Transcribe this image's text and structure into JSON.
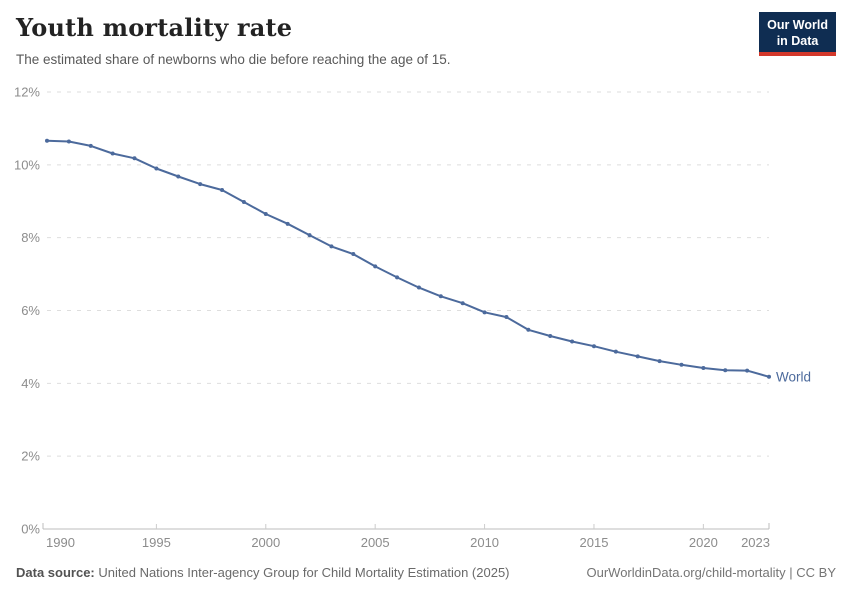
{
  "header": {
    "title": "Youth mortality rate",
    "subtitle": "The estimated share of newborns who die before reaching the age of 15.",
    "logo": {
      "line1": "Our World",
      "line2": "in Data"
    }
  },
  "footer": {
    "datasource_label": "Data source:",
    "datasource_value": "United Nations Inter-agency Group for Child Mortality Estimation (2025)",
    "right_text": "OurWorldinData.org/child-mortality | CC BY"
  },
  "colors": {
    "line": "#4c6a9c",
    "series_label": "#4c6a9c",
    "grid": "#dedede",
    "axis": "#bcbcbc",
    "tick": "#cccccc",
    "tick_label": "#8c8c8c",
    "logo_bg": "#0f2d52",
    "logo_red": "#d3382b"
  },
  "chart_data": {
    "type": "line",
    "title": "Youth mortality rate",
    "subtitle": "The estimated share of newborns who die before reaching the age of 15.",
    "xlabel": "",
    "ylabel": "",
    "grid": true,
    "xlim": [
      1990,
      2023
    ],
    "ylim": [
      0,
      12
    ],
    "x_ticks": [
      1990,
      1995,
      2000,
      2005,
      2010,
      2015,
      2020,
      2023
    ],
    "x_tick_labels": [
      "1990",
      "1995",
      "2000",
      "2005",
      "2010",
      "2015",
      "2020",
      "2023"
    ],
    "y_ticks": [
      0,
      2,
      4,
      6,
      8,
      10,
      12
    ],
    "y_tick_labels": [
      "0%",
      "2%",
      "4%",
      "6%",
      "8%",
      "10%",
      "12%"
    ],
    "series": [
      {
        "name": "World",
        "x": [
          1990,
          1991,
          1992,
          1993,
          1994,
          1995,
          1996,
          1997,
          1998,
          1999,
          2000,
          2001,
          2002,
          2003,
          2004,
          2005,
          2006,
          2007,
          2008,
          2009,
          2010,
          2011,
          2012,
          2013,
          2014,
          2015,
          2016,
          2017,
          2018,
          2019,
          2020,
          2021,
          2022,
          2023
        ],
        "values": [
          10.66,
          10.64,
          10.52,
          10.31,
          10.18,
          9.9,
          9.68,
          9.47,
          9.31,
          8.98,
          8.65,
          8.38,
          8.07,
          7.76,
          7.55,
          7.21,
          6.91,
          6.63,
          6.39,
          6.2,
          5.95,
          5.82,
          5.47,
          5.3,
          5.15,
          5.02,
          4.87,
          4.74,
          4.61,
          4.51,
          4.42,
          4.36,
          4.35,
          4.18
        ]
      }
    ],
    "legend_position": "end-of-line-label"
  }
}
